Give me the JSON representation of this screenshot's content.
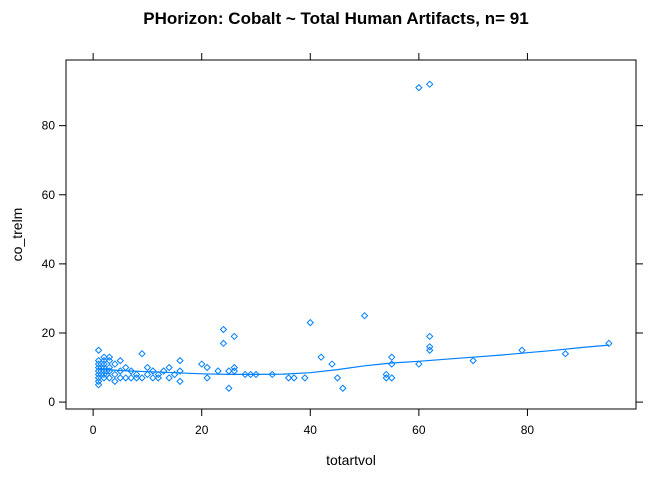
{
  "chart_data": {
    "type": "scatter",
    "title": "PHorizon: Cobalt ~ Total Human Artifacts, n= 91",
    "xlabel": "totartvol",
    "ylabel": "co_trelm",
    "xlim": [
      -5,
      100
    ],
    "ylim": [
      -2,
      99
    ],
    "xticks": [
      0,
      20,
      40,
      60,
      80
    ],
    "yticks": [
      0,
      20,
      40,
      60,
      80
    ],
    "x_tick_labels": [
      "0",
      "20",
      "40",
      "60",
      "80"
    ],
    "y_tick_labels": [
      "0",
      "20",
      "40",
      "60",
      "80"
    ],
    "grid": false,
    "marker": "diamond",
    "color": "#0080ff",
    "points": [
      [
        1,
        15
      ],
      [
        1,
        12
      ],
      [
        1,
        11
      ],
      [
        1,
        10
      ],
      [
        1,
        9
      ],
      [
        1,
        8
      ],
      [
        1,
        7
      ],
      [
        1,
        6
      ],
      [
        1,
        5
      ],
      [
        1.5,
        10
      ],
      [
        1.5,
        8
      ],
      [
        2,
        13
      ],
      [
        2,
        12
      ],
      [
        2,
        11
      ],
      [
        2,
        10
      ],
      [
        2,
        9
      ],
      [
        2,
        8
      ],
      [
        2,
        7
      ],
      [
        2.5,
        9
      ],
      [
        2.5,
        8
      ],
      [
        3,
        12
      ],
      [
        3,
        10
      ],
      [
        3,
        9
      ],
      [
        3,
        7
      ],
      [
        4,
        11
      ],
      [
        4,
        8
      ],
      [
        4,
        6
      ],
      [
        5,
        12
      ],
      [
        5,
        9
      ],
      [
        6,
        10
      ],
      [
        6,
        7
      ],
      [
        7,
        9
      ],
      [
        7,
        7
      ],
      [
        8,
        8
      ],
      [
        8,
        7
      ],
      [
        9,
        14
      ],
      [
        9,
        7
      ],
      [
        10,
        10
      ],
      [
        10,
        8
      ],
      [
        11,
        9
      ],
      [
        11,
        7
      ],
      [
        12,
        8
      ],
      [
        13,
        9
      ],
      [
        14,
        10
      ],
      [
        14,
        7
      ],
      [
        15,
        8
      ],
      [
        16,
        12
      ],
      [
        16,
        9
      ],
      [
        16,
        6
      ],
      [
        20,
        11
      ],
      [
        21,
        10
      ],
      [
        21,
        7
      ],
      [
        23,
        9
      ],
      [
        24,
        21
      ],
      [
        24,
        17
      ],
      [
        25,
        9
      ],
      [
        25,
        4
      ],
      [
        26,
        19
      ],
      [
        26,
        10
      ],
      [
        26,
        9
      ],
      [
        28,
        8
      ],
      [
        29,
        8
      ],
      [
        30,
        8
      ],
      [
        33,
        8
      ],
      [
        36,
        7
      ],
      [
        37,
        7
      ],
      [
        39,
        7
      ],
      [
        40,
        23
      ],
      [
        42,
        13
      ],
      [
        44,
        11
      ],
      [
        45,
        7
      ],
      [
        46,
        4
      ],
      [
        50,
        25
      ],
      [
        54,
        8
      ],
      [
        54,
        7
      ],
      [
        55,
        13
      ],
      [
        55,
        11
      ],
      [
        55,
        7
      ],
      [
        60,
        91
      ],
      [
        60,
        11
      ],
      [
        62,
        92
      ],
      [
        62,
        19
      ],
      [
        62,
        16
      ],
      [
        62,
        15
      ],
      [
        70,
        12
      ],
      [
        79,
        15
      ],
      [
        87,
        14
      ],
      [
        95,
        17
      ],
      [
        3,
        13
      ],
      [
        5,
        7
      ],
      [
        12,
        7
      ]
    ],
    "smooth_line": [
      [
        1,
        9.6
      ],
      [
        5,
        9.1
      ],
      [
        10,
        8.8
      ],
      [
        15,
        8.5
      ],
      [
        20,
        8.2
      ],
      [
        25,
        8.0
      ],
      [
        30,
        8.0
      ],
      [
        35,
        8.1
      ],
      [
        40,
        8.5
      ],
      [
        45,
        9.4
      ],
      [
        50,
        10.5
      ],
      [
        55,
        11.3
      ],
      [
        60,
        11.8
      ],
      [
        65,
        12.4
      ],
      [
        70,
        13.0
      ],
      [
        75,
        13.6
      ],
      [
        80,
        14.3
      ],
      [
        85,
        15.0
      ],
      [
        90,
        15.8
      ],
      [
        95,
        16.5
      ]
    ]
  }
}
